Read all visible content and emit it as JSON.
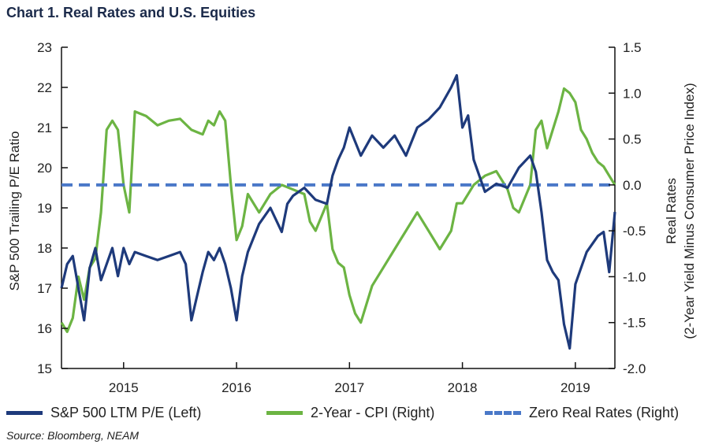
{
  "header": {
    "title": "Chart 1. Real Rates and U.S. Equities"
  },
  "source": "Source: Bloomberg, NEAM",
  "colors": {
    "pe": "#1e3a7b",
    "real": "#6cb443",
    "zero": "#4a78c8",
    "axis": "#111111"
  },
  "chart_data": {
    "type": "line",
    "title": "Chart 1. Real Rates and U.S. Equities",
    "y_left": {
      "label": "S&P 500 Trailing P/E Ratio",
      "range": [
        15,
        23
      ],
      "ticks": [
        15,
        16,
        17,
        18,
        19,
        20,
        21,
        22,
        23
      ]
    },
    "y_right": {
      "label_line1": "Real Rates",
      "label_line2": "(2-Year Yield Minus Consumer Price Index)",
      "range": [
        -2.0,
        1.5
      ],
      "ticks": [
        -2.0,
        -1.5,
        -1.0,
        -0.5,
        0.0,
        0.5,
        1.0,
        1.5
      ]
    },
    "x_axis": {
      "range": [
        2014.45,
        2019.35
      ],
      "ticks": [
        2015,
        2016,
        2017,
        2018,
        2019
      ],
      "tick_labels": [
        "2015",
        "2016",
        "2017",
        "2018",
        "2019"
      ]
    },
    "legend": {
      "placement": "bottom",
      "entries": [
        "S&P 500 LTM P/E (Left)",
        "2-Year - CPI (Right)",
        "Zero Real Rates (Right)"
      ]
    },
    "series": [
      {
        "name": "S&P 500 LTM P/E (Left)",
        "axis": "left",
        "x": [
          2014.45,
          2014.5,
          2014.55,
          2014.6,
          2014.65,
          2014.7,
          2014.75,
          2014.8,
          2014.85,
          2014.9,
          2014.95,
          2015.0,
          2015.05,
          2015.1,
          2015.2,
          2015.3,
          2015.4,
          2015.5,
          2015.55,
          2015.6,
          2015.65,
          2015.7,
          2015.75,
          2015.8,
          2015.85,
          2015.9,
          2015.95,
          2016.0,
          2016.05,
          2016.1,
          2016.2,
          2016.3,
          2016.4,
          2016.45,
          2016.5,
          2016.6,
          2016.7,
          2016.8,
          2016.85,
          2016.9,
          2016.95,
          2017.0,
          2017.1,
          2017.2,
          2017.3,
          2017.4,
          2017.5,
          2017.6,
          2017.7,
          2017.8,
          2017.9,
          2017.95,
          2018.0,
          2018.05,
          2018.1,
          2018.2,
          2018.3,
          2018.4,
          2018.5,
          2018.6,
          2018.65,
          2018.7,
          2018.75,
          2018.8,
          2018.85,
          2018.9,
          2018.95,
          2019.0,
          2019.05,
          2019.1,
          2019.15,
          2019.2,
          2019.25,
          2019.3,
          2019.35
        ],
        "values": [
          17.0,
          17.6,
          17.8,
          17.0,
          16.2,
          17.5,
          18.0,
          17.2,
          17.6,
          18.0,
          17.3,
          18.0,
          17.6,
          17.9,
          17.8,
          17.7,
          17.8,
          17.9,
          17.6,
          16.2,
          16.8,
          17.4,
          17.9,
          17.7,
          18.0,
          17.6,
          17.0,
          16.2,
          17.3,
          17.9,
          18.6,
          19.0,
          18.4,
          19.1,
          19.3,
          19.5,
          19.2,
          19.1,
          19.8,
          20.2,
          20.5,
          21.0,
          20.3,
          20.8,
          20.5,
          20.8,
          20.3,
          21.0,
          21.2,
          21.5,
          22.0,
          22.3,
          21.0,
          21.3,
          20.2,
          19.4,
          19.6,
          19.5,
          20.0,
          20.3,
          19.9,
          18.9,
          17.7,
          17.4,
          17.2,
          16.1,
          15.5,
          17.1,
          17.5,
          17.9,
          18.1,
          18.3,
          18.4,
          17.4,
          18.9
        ]
      },
      {
        "name": "2-Year - CPI (Right)",
        "axis": "right",
        "x": [
          2014.45,
          2014.5,
          2014.55,
          2014.6,
          2014.65,
          2014.7,
          2014.75,
          2014.8,
          2014.85,
          2014.9,
          2014.95,
          2015.0,
          2015.05,
          2015.1,
          2015.2,
          2015.3,
          2015.4,
          2015.5,
          2015.6,
          2015.7,
          2015.75,
          2015.8,
          2015.85,
          2015.9,
          2015.95,
          2016.0,
          2016.05,
          2016.1,
          2016.2,
          2016.3,
          2016.4,
          2016.5,
          2016.6,
          2016.65,
          2016.7,
          2016.8,
          2016.85,
          2016.9,
          2016.95,
          2017.0,
          2017.05,
          2017.1,
          2017.2,
          2017.3,
          2017.4,
          2017.5,
          2017.6,
          2017.7,
          2017.8,
          2017.9,
          2017.95,
          2018.0,
          2018.1,
          2018.2,
          2018.3,
          2018.4,
          2018.45,
          2018.5,
          2018.55,
          2018.6,
          2018.65,
          2018.7,
          2018.75,
          2018.8,
          2018.85,
          2018.9,
          2018.95,
          2019.0,
          2019.05,
          2019.1,
          2019.15,
          2019.2,
          2019.25,
          2019.3,
          2019.35
        ],
        "values": [
          -1.5,
          -1.6,
          -1.45,
          -1.0,
          -1.25,
          -0.9,
          -0.8,
          -0.3,
          0.6,
          0.7,
          0.6,
          0.0,
          -0.3,
          0.8,
          0.75,
          0.65,
          0.7,
          0.72,
          0.6,
          0.55,
          0.7,
          0.65,
          0.8,
          0.7,
          0.0,
          -0.6,
          -0.45,
          -0.1,
          -0.3,
          -0.1,
          0.0,
          -0.05,
          -0.1,
          -0.4,
          -0.5,
          -0.2,
          -0.7,
          -0.85,
          -0.9,
          -1.2,
          -1.4,
          -1.5,
          -1.1,
          -0.9,
          -0.7,
          -0.5,
          -0.3,
          -0.5,
          -0.7,
          -0.5,
          -0.2,
          -0.2,
          0.0,
          0.1,
          0.15,
          -0.05,
          -0.25,
          -0.3,
          -0.15,
          0.0,
          0.6,
          0.7,
          0.4,
          0.6,
          0.8,
          1.05,
          1.0,
          0.9,
          0.6,
          0.5,
          0.35,
          0.25,
          0.2,
          0.1,
          0.0
        ]
      },
      {
        "name": "Zero Real Rates (Right)",
        "axis": "right",
        "x": [
          2014.45,
          2019.35
        ],
        "values": [
          0.0,
          0.0
        ]
      }
    ]
  }
}
